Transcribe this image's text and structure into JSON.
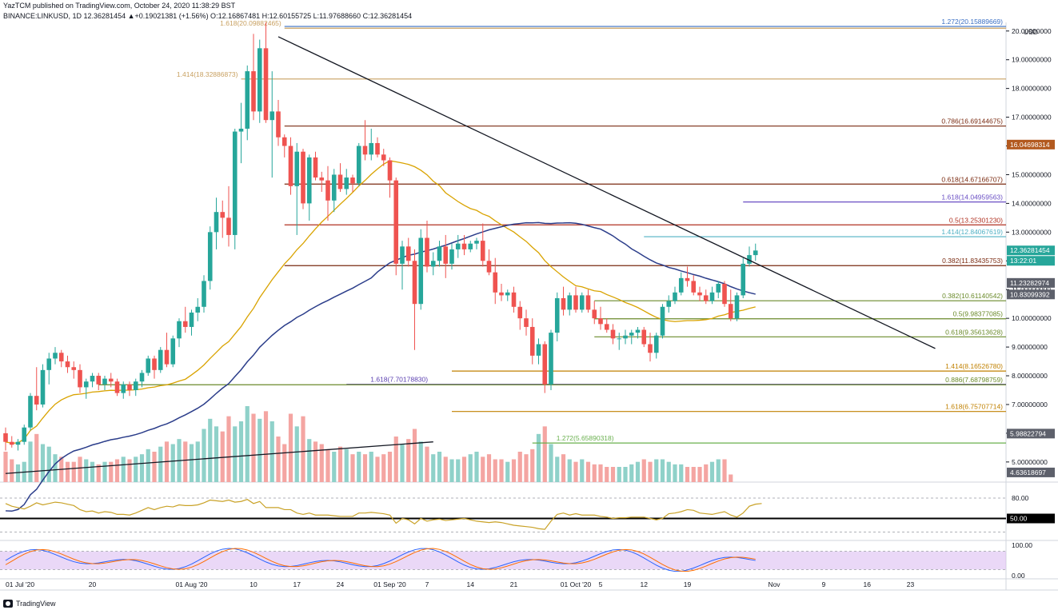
{
  "header": {
    "line1": "YazTCM published on TradingView.com, October 24, 2020 11:38:29 BST",
    "line2": "BINANCE:LINKUSD, 1D  12.36281454  ▲+0.19021381 (+1.56%)  O:12.16867481  H:12.60155725  L:11.97688660  C:12.36281454"
  },
  "footer": {
    "brand": "TradingView"
  },
  "colors": {
    "up": "#26a69a",
    "down": "#ef5350",
    "volUp": "#8fd1c9",
    "volDown": "#f4a5a2",
    "sma": "#d9a300",
    "sma200": "#2b3d8a",
    "rsi": "#c9a227",
    "stoch": "#d8b8f0"
  },
  "chart_data": {
    "type": "candlestick",
    "symbol": "BINANCE:LINKUSD",
    "interval": "1D",
    "currency_label": "USD",
    "ylim": [
      4.3,
      20.3
    ],
    "price_ticks": [
      "20.00000000",
      "19.00000000",
      "18.00000000",
      "17.00000000",
      "16.00000000",
      "15.00000000",
      "14.00000000",
      "13.00000000",
      "12.00000000",
      "11.00000000",
      "10.00000000",
      "9.00000000",
      "8.00000000",
      "7.00000000",
      "6.00000000",
      "5.00000000"
    ],
    "price_tick_values": [
      20,
      19,
      18,
      17,
      16,
      15,
      14,
      13,
      12,
      11,
      10,
      9,
      8,
      7,
      6,
      5
    ],
    "x_tick_labels": [
      "01 Jul '20",
      "20",
      "01 Aug '20",
      "10",
      "17",
      "24",
      "01 Sep '20",
      "7",
      "14",
      "21",
      "01 Oct '20",
      "5",
      "12",
      "19",
      "Nov",
      "9",
      "16",
      "23"
    ],
    "x_tick_days": [
      0,
      14,
      30,
      40,
      47,
      54,
      62,
      68,
      75,
      82,
      92,
      96,
      103,
      110,
      124,
      132,
      139,
      146
    ],
    "series": [
      {
        "o": 6.0,
        "h": 6.2,
        "l": 5.4,
        "c": 5.7
      },
      {
        "o": 5.7,
        "h": 5.9,
        "l": 5.5,
        "c": 5.6
      },
      {
        "o": 5.6,
        "h": 5.8,
        "l": 5.4,
        "c": 5.7
      },
      {
        "o": 5.7,
        "h": 6.3,
        "l": 5.6,
        "c": 6.2
      },
      {
        "o": 6.2,
        "h": 7.4,
        "l": 6.1,
        "c": 7.3
      },
      {
        "o": 7.3,
        "h": 8.3,
        "l": 6.8,
        "c": 7.0
      },
      {
        "o": 7.0,
        "h": 8.4,
        "l": 6.9,
        "c": 8.2
      },
      {
        "o": 8.2,
        "h": 8.8,
        "l": 7.7,
        "c": 8.6
      },
      {
        "o": 8.6,
        "h": 9.0,
        "l": 8.4,
        "c": 8.8
      },
      {
        "o": 8.8,
        "h": 8.9,
        "l": 8.3,
        "c": 8.5
      },
      {
        "o": 8.5,
        "h": 8.7,
        "l": 8.1,
        "c": 8.3
      },
      {
        "o": 8.3,
        "h": 8.5,
        "l": 7.9,
        "c": 8.2
      },
      {
        "o": 8.2,
        "h": 8.4,
        "l": 7.4,
        "c": 7.6
      },
      {
        "o": 7.6,
        "h": 7.9,
        "l": 7.2,
        "c": 7.8
      },
      {
        "o": 7.8,
        "h": 8.1,
        "l": 7.6,
        "c": 8.0
      },
      {
        "o": 8.0,
        "h": 8.1,
        "l": 7.5,
        "c": 7.7
      },
      {
        "o": 7.7,
        "h": 8.0,
        "l": 7.5,
        "c": 7.9
      },
      {
        "o": 7.9,
        "h": 8.1,
        "l": 7.6,
        "c": 7.8
      },
      {
        "o": 7.8,
        "h": 7.9,
        "l": 7.3,
        "c": 7.4
      },
      {
        "o": 7.4,
        "h": 7.8,
        "l": 7.2,
        "c": 7.7
      },
      {
        "o": 7.7,
        "h": 7.8,
        "l": 7.3,
        "c": 7.5
      },
      {
        "o": 7.5,
        "h": 7.9,
        "l": 7.3,
        "c": 7.8
      },
      {
        "o": 7.8,
        "h": 8.2,
        "l": 7.6,
        "c": 8.1
      },
      {
        "o": 8.1,
        "h": 8.7,
        "l": 8.0,
        "c": 8.6
      },
      {
        "o": 8.6,
        "h": 8.7,
        "l": 7.9,
        "c": 8.2
      },
      {
        "o": 8.2,
        "h": 9.0,
        "l": 8.1,
        "c": 8.9
      },
      {
        "o": 8.9,
        "h": 9.5,
        "l": 8.3,
        "c": 8.4
      },
      {
        "o": 8.4,
        "h": 9.4,
        "l": 8.3,
        "c": 9.3
      },
      {
        "o": 9.3,
        "h": 10.0,
        "l": 9.0,
        "c": 9.9
      },
      {
        "o": 9.9,
        "h": 10.4,
        "l": 9.5,
        "c": 9.7
      },
      {
        "o": 9.7,
        "h": 10.3,
        "l": 9.4,
        "c": 10.2
      },
      {
        "o": 10.2,
        "h": 10.7,
        "l": 9.9,
        "c": 10.4
      },
      {
        "o": 10.4,
        "h": 11.5,
        "l": 10.2,
        "c": 11.3
      },
      {
        "o": 11.3,
        "h": 13.2,
        "l": 11.0,
        "c": 13.0
      },
      {
        "o": 13.0,
        "h": 14.2,
        "l": 12.4,
        "c": 13.7
      },
      {
        "o": 13.7,
        "h": 14.1,
        "l": 12.8,
        "c": 13.5
      },
      {
        "o": 13.5,
        "h": 14.6,
        "l": 12.5,
        "c": 12.9
      },
      {
        "o": 12.9,
        "h": 16.6,
        "l": 12.4,
        "c": 16.5
      },
      {
        "o": 16.5,
        "h": 17.5,
        "l": 15.4,
        "c": 16.6
      },
      {
        "o": 16.6,
        "h": 18.8,
        "l": 16.2,
        "c": 18.6
      },
      {
        "o": 18.6,
        "h": 19.9,
        "l": 16.9,
        "c": 17.2
      },
      {
        "o": 17.2,
        "h": 19.7,
        "l": 16.8,
        "c": 19.4
      },
      {
        "o": 19.4,
        "h": 20.3,
        "l": 16.8,
        "c": 16.9
      },
      {
        "o": 16.9,
        "h": 18.6,
        "l": 14.9,
        "c": 17.2
      },
      {
        "o": 17.2,
        "h": 17.6,
        "l": 16.0,
        "c": 16.3
      },
      {
        "o": 16.3,
        "h": 16.4,
        "l": 15.6,
        "c": 16.0
      },
      {
        "o": 16.0,
        "h": 16.3,
        "l": 14.3,
        "c": 14.6
      },
      {
        "o": 14.6,
        "h": 16.1,
        "l": 12.9,
        "c": 15.8
      },
      {
        "o": 15.8,
        "h": 15.9,
        "l": 13.8,
        "c": 14.0
      },
      {
        "o": 14.0,
        "h": 15.7,
        "l": 13.4,
        "c": 15.6
      },
      {
        "o": 15.6,
        "h": 15.8,
        "l": 14.8,
        "c": 14.9
      },
      {
        "o": 14.9,
        "h": 15.1,
        "l": 14.4,
        "c": 14.8
      },
      {
        "o": 14.8,
        "h": 15.3,
        "l": 13.4,
        "c": 14.1
      },
      {
        "o": 14.1,
        "h": 15.2,
        "l": 13.7,
        "c": 15.0
      },
      {
        "o": 15.0,
        "h": 15.4,
        "l": 14.4,
        "c": 14.5
      },
      {
        "o": 14.5,
        "h": 15.2,
        "l": 14.3,
        "c": 14.9
      },
      {
        "o": 14.9,
        "h": 15.0,
        "l": 14.4,
        "c": 14.7
      },
      {
        "o": 14.7,
        "h": 16.1,
        "l": 14.6,
        "c": 16.0
      },
      {
        "o": 16.0,
        "h": 16.9,
        "l": 15.5,
        "c": 15.7
      },
      {
        "o": 15.7,
        "h": 16.6,
        "l": 15.5,
        "c": 16.1
      },
      {
        "o": 16.1,
        "h": 16.3,
        "l": 15.6,
        "c": 15.7
      },
      {
        "o": 15.7,
        "h": 15.9,
        "l": 15.3,
        "c": 15.5
      },
      {
        "o": 15.5,
        "h": 15.6,
        "l": 14.2,
        "c": 14.8
      },
      {
        "o": 14.8,
        "h": 14.9,
        "l": 11.5,
        "c": 11.9
      },
      {
        "o": 11.9,
        "h": 12.7,
        "l": 11.0,
        "c": 12.5
      },
      {
        "o": 12.5,
        "h": 12.8,
        "l": 11.8,
        "c": 12.0
      },
      {
        "o": 12.0,
        "h": 12.4,
        "l": 8.9,
        "c": 10.5
      },
      {
        "o": 10.5,
        "h": 13.1,
        "l": 10.3,
        "c": 12.8
      },
      {
        "o": 12.8,
        "h": 13.4,
        "l": 11.6,
        "c": 11.8
      },
      {
        "o": 11.8,
        "h": 12.3,
        "l": 11.5,
        "c": 12.0
      },
      {
        "o": 12.0,
        "h": 12.7,
        "l": 11.8,
        "c": 12.5
      },
      {
        "o": 12.5,
        "h": 12.9,
        "l": 11.4,
        "c": 11.9
      },
      {
        "o": 11.9,
        "h": 12.6,
        "l": 11.7,
        "c": 12.4
      },
      {
        "o": 12.4,
        "h": 12.9,
        "l": 12.1,
        "c": 12.6
      },
      {
        "o": 12.6,
        "h": 12.9,
        "l": 12.2,
        "c": 12.4
      },
      {
        "o": 12.4,
        "h": 12.7,
        "l": 12.3,
        "c": 12.6
      },
      {
        "o": 12.6,
        "h": 12.8,
        "l": 12.4,
        "c": 12.7
      },
      {
        "o": 12.7,
        "h": 13.3,
        "l": 11.8,
        "c": 12.0
      },
      {
        "o": 12.0,
        "h": 12.4,
        "l": 11.5,
        "c": 11.6
      },
      {
        "o": 11.6,
        "h": 12.1,
        "l": 10.5,
        "c": 10.9
      },
      {
        "o": 10.9,
        "h": 11.2,
        "l": 10.6,
        "c": 10.8
      },
      {
        "o": 10.8,
        "h": 11.0,
        "l": 10.6,
        "c": 10.9
      },
      {
        "o": 10.9,
        "h": 11.1,
        "l": 10.2,
        "c": 10.4
      },
      {
        "o": 10.4,
        "h": 10.6,
        "l": 9.6,
        "c": 10.0
      },
      {
        "o": 10.0,
        "h": 10.3,
        "l": 9.4,
        "c": 9.7
      },
      {
        "o": 9.7,
        "h": 10.0,
        "l": 8.4,
        "c": 8.7
      },
      {
        "o": 8.7,
        "h": 9.3,
        "l": 8.4,
        "c": 9.1
      },
      {
        "o": 9.1,
        "h": 9.2,
        "l": 7.4,
        "c": 7.7
      },
      {
        "o": 7.7,
        "h": 9.6,
        "l": 7.5,
        "c": 9.5
      },
      {
        "o": 9.5,
        "h": 10.9,
        "l": 9.2,
        "c": 10.7
      },
      {
        "o": 10.7,
        "h": 11.1,
        "l": 10.1,
        "c": 10.3
      },
      {
        "o": 10.3,
        "h": 10.9,
        "l": 10.1,
        "c": 10.8
      },
      {
        "o": 10.8,
        "h": 11.1,
        "l": 10.2,
        "c": 10.3
      },
      {
        "o": 10.3,
        "h": 10.9,
        "l": 10.2,
        "c": 10.8
      },
      {
        "o": 10.8,
        "h": 11.0,
        "l": 10.2,
        "c": 10.3
      },
      {
        "o": 10.3,
        "h": 10.6,
        "l": 9.8,
        "c": 10.0
      },
      {
        "o": 10.0,
        "h": 10.4,
        "l": 9.6,
        "c": 9.8
      },
      {
        "o": 9.8,
        "h": 10.0,
        "l": 9.5,
        "c": 9.6
      },
      {
        "o": 9.6,
        "h": 9.8,
        "l": 9.1,
        "c": 9.3
      },
      {
        "o": 9.3,
        "h": 9.5,
        "l": 8.9,
        "c": 9.3
      },
      {
        "o": 9.3,
        "h": 9.6,
        "l": 9.1,
        "c": 9.4
      },
      {
        "o": 9.4,
        "h": 9.6,
        "l": 9.1,
        "c": 9.5
      },
      {
        "o": 9.5,
        "h": 9.7,
        "l": 9.3,
        "c": 9.6
      },
      {
        "o": 9.6,
        "h": 9.7,
        "l": 9.0,
        "c": 9.1
      },
      {
        "o": 9.1,
        "h": 9.5,
        "l": 8.5,
        "c": 8.8
      },
      {
        "o": 8.8,
        "h": 9.5,
        "l": 8.6,
        "c": 9.4
      },
      {
        "o": 9.4,
        "h": 10.5,
        "l": 9.3,
        "c": 10.4
      },
      {
        "o": 10.4,
        "h": 10.8,
        "l": 10.2,
        "c": 10.6
      },
      {
        "o": 10.6,
        "h": 11.1,
        "l": 10.5,
        "c": 10.9
      },
      {
        "o": 10.9,
        "h": 11.6,
        "l": 10.8,
        "c": 11.4
      },
      {
        "o": 11.4,
        "h": 11.8,
        "l": 11.1,
        "c": 11.3
      },
      {
        "o": 11.3,
        "h": 11.5,
        "l": 10.8,
        "c": 10.9
      },
      {
        "o": 10.9,
        "h": 11.1,
        "l": 10.6,
        "c": 10.8
      },
      {
        "o": 10.8,
        "h": 11.0,
        "l": 10.5,
        "c": 10.6
      },
      {
        "o": 10.6,
        "h": 11.1,
        "l": 10.5,
        "c": 10.9
      },
      {
        "o": 10.9,
        "h": 11.3,
        "l": 10.7,
        "c": 11.2
      },
      {
        "o": 11.2,
        "h": 11.3,
        "l": 10.4,
        "c": 10.5
      },
      {
        "o": 10.5,
        "h": 11.0,
        "l": 9.9,
        "c": 10.0
      },
      {
        "o": 10.0,
        "h": 10.9,
        "l": 9.9,
        "c": 10.8
      },
      {
        "o": 10.8,
        "h": 12.1,
        "l": 10.7,
        "c": 11.9
      },
      {
        "o": 11.9,
        "h": 12.5,
        "l": 11.8,
        "c": 12.2
      },
      {
        "o": 12.2,
        "h": 12.6,
        "l": 12.0,
        "c": 12.36
      }
    ],
    "volume": [
      1.2,
      0.9,
      0.7,
      0.8,
      1.6,
      1.9,
      1.5,
      1.4,
      1.1,
      1.0,
      0.8,
      0.8,
      1.0,
      0.9,
      0.8,
      0.7,
      0.8,
      0.8,
      0.9,
      1.0,
      0.9,
      1.0,
      1.1,
      1.3,
      1.2,
      1.4,
      1.6,
      1.5,
      1.7,
      1.6,
      1.5,
      1.6,
      2.1,
      2.5,
      2.2,
      2.0,
      2.6,
      2.2,
      2.4,
      3.0,
      2.7,
      2.5,
      2.8,
      2.4,
      1.8,
      1.5,
      2.7,
      2.2,
      2.6,
      1.7,
      1.6,
      1.5,
      1.3,
      1.2,
      1.4,
      1.3,
      1.1,
      1.2,
      1.1,
      1.2,
      1.0,
      1.1,
      1.2,
      1.8,
      1.5,
      1.7,
      2.1,
      1.6,
      1.4,
      1.1,
      1.2,
      1.0,
      0.9,
      0.9,
      1.0,
      1.1,
      1.2,
      1.0,
      1.1,
      0.9,
      0.9,
      0.8,
      0.9,
      1.2,
      1.1,
      1.3,
      1.9,
      2.2,
      1.5,
      1.0,
      1.1,
      0.9,
      0.8,
      0.9,
      0.8,
      0.7,
      0.7,
      0.6,
      0.6,
      0.6,
      0.6,
      0.7,
      0.8,
      0.9,
      0.8,
      0.9,
      0.9,
      0.8,
      0.7,
      0.7,
      0.6,
      0.6,
      0.6,
      0.7,
      0.8,
      0.9,
      0.9,
      0.3
    ],
    "fib_levels": [
      {
        "label": "1.618(20.09882465)",
        "price": 20.099,
        "x0": 45,
        "color": "#c8a060",
        "side": "left"
      },
      {
        "label": "1.272(20.15889669)",
        "price": 20.159,
        "x0": 45,
        "color": "#3a6fc4",
        "side": "right"
      },
      {
        "label": "1.414(18.32886873)",
        "price": 18.329,
        "x0": 38,
        "color": "#c8a060",
        "side": "left"
      },
      {
        "label": "0.786(16.69144675)",
        "price": 16.691,
        "x0": 45,
        "color": "#7a2a10",
        "side": "right"
      },
      {
        "label": "0.618(14.67166707)",
        "price": 14.672,
        "x0": 45,
        "color": "#7a2a10",
        "side": "right"
      },
      {
        "label": "1.618(14.04959563)",
        "price": 14.05,
        "x0": 119,
        "color": "#6a4fc4",
        "side": "right"
      },
      {
        "label": "0.5(13.25301230)",
        "price": 13.253,
        "x0": 45,
        "color": "#b03020",
        "side": "right"
      },
      {
        "label": "1.414(12.84067619)",
        "price": 12.841,
        "x0": 103,
        "color": "#4fb0c4",
        "side": "right"
      },
      {
        "label": "0.382(11.83435753)",
        "price": 11.834,
        "x0": 45,
        "color": "#7a2a10",
        "side": "right"
      },
      {
        "label": "0.382(10.61140542)",
        "price": 10.611,
        "x0": 95,
        "color": "#6a8a2a",
        "side": "right"
      },
      {
        "label": "0.5(9.98377085)",
        "price": 9.984,
        "x0": 95,
        "color": "#6a8a2a",
        "side": "right"
      },
      {
        "label": "0.618(9.35613628)",
        "price": 9.356,
        "x0": 95,
        "color": "#6a8a2a",
        "side": "right"
      },
      {
        "label": "1.414(8.16526780)",
        "price": 8.165,
        "x0": 72,
        "color": "#c08000",
        "side": "right"
      },
      {
        "label": "1.618(7.70178830)",
        "price": 7.702,
        "x0": 55,
        "color": "#5a3fb0",
        "side": "center"
      },
      {
        "label": "0.886(7.68798759)",
        "price": 7.688,
        "x0": 15,
        "color": "#6a8a2a",
        "side": "right"
      },
      {
        "label": "1.618(6.75707714)",
        "price": 6.757,
        "x0": 72,
        "color": "#c08000",
        "side": "right"
      },
      {
        "label": "1.272(5.65890318)",
        "price": 5.659,
        "x0": 85,
        "color": "#6ab04f",
        "side": "center"
      }
    ],
    "price_tags": [
      {
        "label": "16.04698314",
        "price": 16.047,
        "color": "#b35a1f"
      },
      {
        "label": "12.36281454",
        "price": 12.363,
        "color": "#26a69a"
      },
      {
        "label": "13:22:01",
        "price": 12.0,
        "color": "#26a69a"
      },
      {
        "label": "11.23282974",
        "price": 11.233,
        "color": "#5d606b"
      },
      {
        "label": "10.83099392",
        "price": 10.831,
        "color": "#5d606b"
      },
      {
        "label": "5.98822794",
        "price": 5.988,
        "color": "#5d606b"
      },
      {
        "label": "4.63618697",
        "price": 4.636,
        "color": "#5d606b"
      }
    ],
    "trendline": {
      "day0": 44,
      "price0": 19.8,
      "day1": 150,
      "price1": 8.95
    },
    "rsi": {
      "ticks": [
        "80.00",
        "50.00"
      ],
      "tick_values": [
        80,
        50
      ],
      "tag_label": "50.00",
      "values": [
        72,
        68,
        66,
        64,
        68,
        73,
        70,
        72,
        74,
        73,
        71,
        69,
        63,
        60,
        61,
        58,
        60,
        59,
        56,
        56,
        55,
        58,
        62,
        66,
        63,
        66,
        68,
        67,
        70,
        69,
        69,
        70,
        73,
        77,
        76,
        75,
        77,
        74,
        75,
        78,
        72,
        75,
        66,
        66,
        66,
        63,
        63,
        58,
        56,
        58,
        55,
        55,
        55,
        54,
        53,
        53,
        53,
        58,
        58,
        59,
        58,
        57,
        55,
        43,
        50,
        48,
        42,
        50,
        46,
        48,
        49,
        47,
        48,
        49,
        50,
        48,
        46,
        45,
        44,
        45,
        44,
        42,
        40,
        39,
        38,
        37,
        35,
        34,
        46,
        56,
        58,
        55,
        57,
        55,
        55,
        55,
        53,
        52,
        50,
        51,
        51,
        52,
        52,
        52,
        50,
        48,
        50,
        57,
        58,
        60,
        63,
        62,
        58,
        57,
        56,
        58,
        60,
        55,
        52,
        58,
        68,
        71,
        72
      ]
    },
    "stoch": {
      "ticks": [
        "100.00",
        "0.00"
      ],
      "tick_values": [
        100,
        0
      ]
    }
  }
}
